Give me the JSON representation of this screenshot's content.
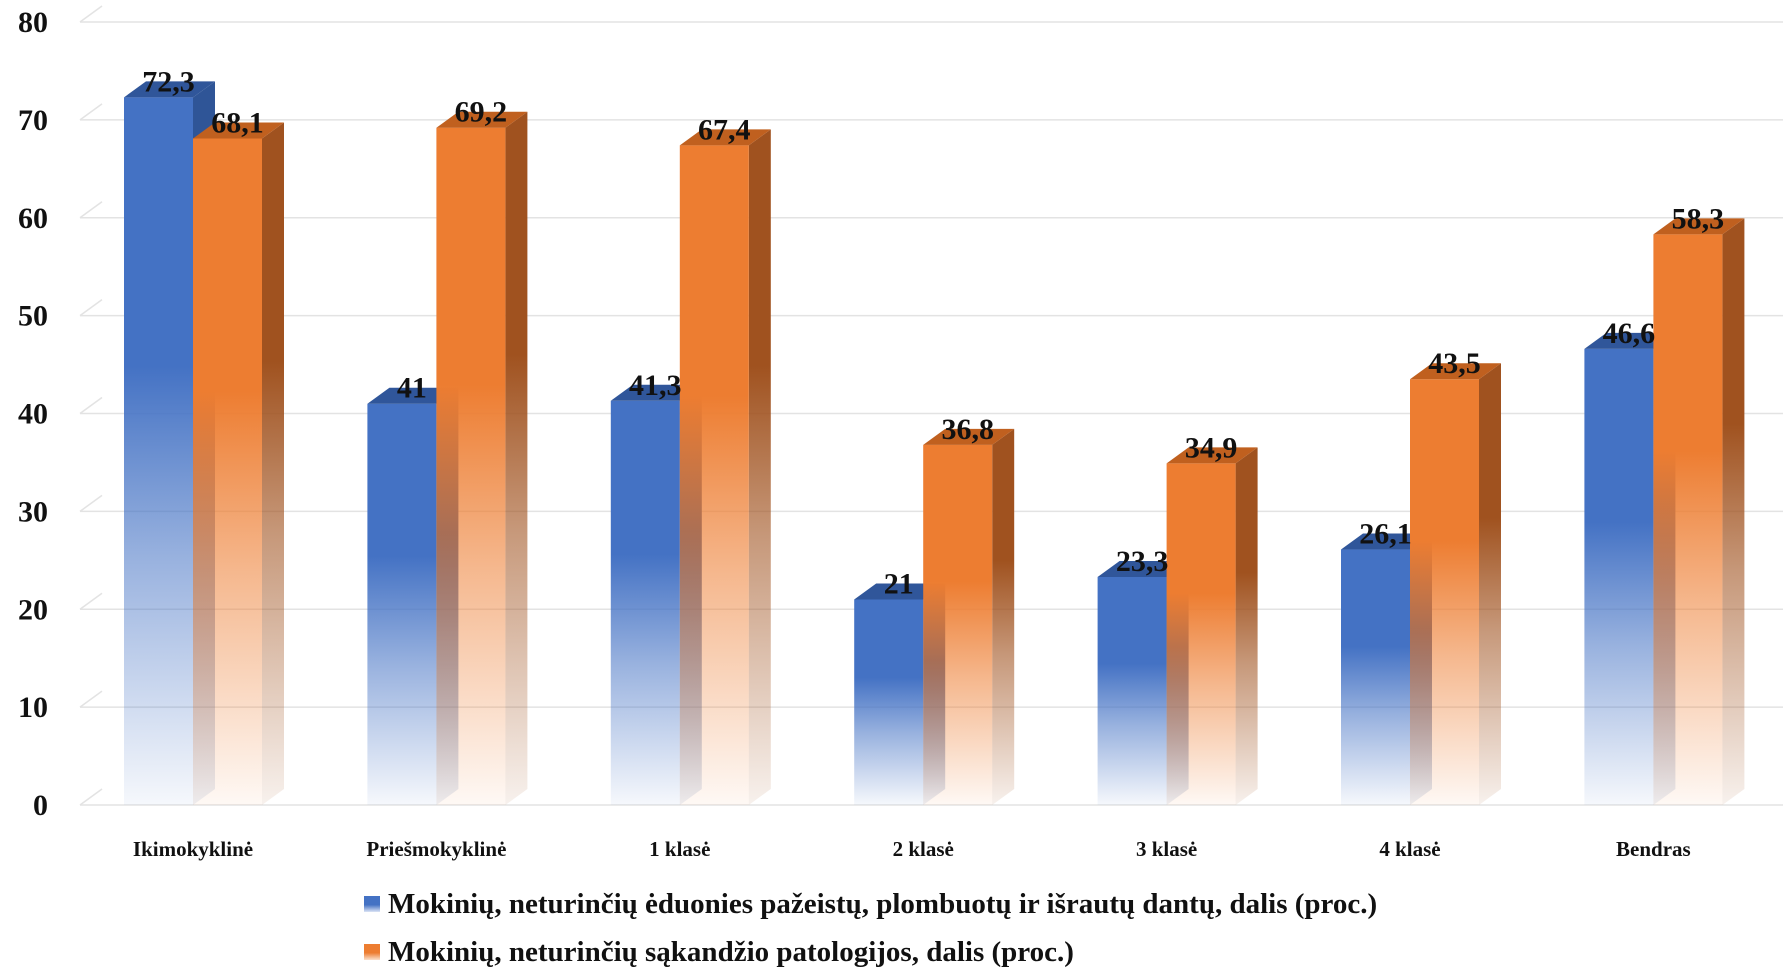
{
  "chart_data": {
    "type": "bar",
    "categories": [
      "Ikimokyklinė",
      "Priešmokyklinė",
      "1 klasė",
      "2 klasė",
      "3 klasė",
      "4 klasė",
      "Bendras"
    ],
    "series": [
      {
        "name": "Mokinių, neturinčių ėduonies pažeistų, plombuotų ir išrautų dantų, dalis (proc.)",
        "values": [
          72.3,
          41,
          41.3,
          21,
          23.3,
          26.1,
          46.6
        ],
        "labels": [
          "72,3",
          "41",
          "41,3",
          "21",
          "23,3",
          "26,1",
          "46,6"
        ],
        "color": "#4472c4"
      },
      {
        "name": "Mokinių, neturinčių sąkandžio patologijos, dalis (proc.)",
        "values": [
          68.1,
          69.2,
          67.4,
          36.8,
          34.9,
          43.5,
          58.3
        ],
        "labels": [
          "68,1",
          "69,2",
          "67,4",
          "36,8",
          "34,9",
          "43,5",
          "58,3"
        ],
        "color": "#ed7d31"
      }
    ],
    "yticks": [
      0,
      10,
      20,
      30,
      40,
      50,
      60,
      70,
      80
    ],
    "ylim": [
      0,
      80
    ],
    "grid": true,
    "style": "3d-gradient-bars",
    "legend_position": "bottom"
  }
}
